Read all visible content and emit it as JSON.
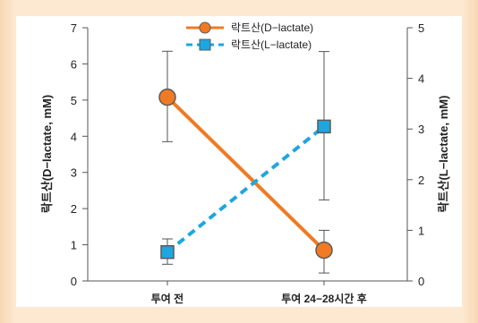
{
  "chart_data": {
    "type": "line",
    "categories": [
      "투여 전",
      "투여 24−28시간 후"
    ],
    "series": [
      {
        "name": "락트산(D−lactate)",
        "axis": "left",
        "values": [
          5.08,
          0.85
        ],
        "error_low": [
          3.85,
          0.22
        ],
        "error_high": [
          6.35,
          1.4
        ],
        "color": "#f07a23",
        "marker": "circle",
        "line_style": "solid"
      },
      {
        "name": "락트산(L−lactate)",
        "axis": "right",
        "values": [
          0.57,
          3.05
        ],
        "error_low": [
          0.33,
          1.6
        ],
        "error_high": [
          0.83,
          4.53
        ],
        "color": "#1ea6e0",
        "marker": "square",
        "line_style": "dashed"
      }
    ],
    "ylabel_left": "락트산(D−lactate, mM)",
    "ylabel_right": "락트산(L−lactate, mM)",
    "ylim_left": [
      0,
      7
    ],
    "yticks_left": [
      "0",
      "1",
      "2",
      "3",
      "4",
      "5",
      "6",
      "7"
    ],
    "ylim_right": [
      0,
      5
    ],
    "yticks_right": [
      "0",
      "1",
      "2",
      "3",
      "4",
      "5"
    ],
    "legend_position": "top-center",
    "grid": false
  },
  "colors": {
    "frame": "#f8d7b3",
    "panel": "#ffffff",
    "axis": "#555555"
  }
}
